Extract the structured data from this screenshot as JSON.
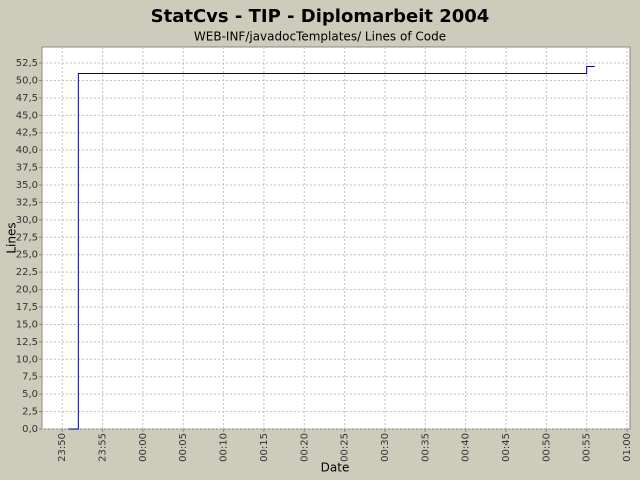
{
  "chart_data": {
    "type": "line",
    "step": "post",
    "title": "StatCvs - TIP - Diplomarbeit 2004",
    "subtitle": "WEB-INF/javadocTemplates/ Lines of Code",
    "x_label": "Date",
    "y_label": "Lines",
    "x": [
      "23:50:45",
      "23:52",
      "00:55",
      "00:56"
    ],
    "series": [
      {
        "name": "Lines of Code",
        "color": "#000080",
        "values": [
          0,
          51,
          52,
          52
        ]
      }
    ],
    "xlim": [
      "23:47:30",
      "01:00:22"
    ],
    "xticks": [
      "23:50",
      "23:55",
      "00:00",
      "00:05",
      "00:10",
      "00:15",
      "00:20",
      "00:25",
      "00:30",
      "00:35",
      "00:40",
      "00:45",
      "00:50",
      "00:55",
      "01:00"
    ],
    "ylim": [
      0,
      54.8
    ],
    "yticks": [
      {
        "value": 0,
        "label": "0,0"
      },
      {
        "value": 2.5,
        "label": "2,5"
      },
      {
        "value": 5,
        "label": "5,0"
      },
      {
        "value": 7.5,
        "label": "7,5"
      },
      {
        "value": 10,
        "label": "10,0"
      },
      {
        "value": 12.5,
        "label": "12,5"
      },
      {
        "value": 15,
        "label": "15,0"
      },
      {
        "value": 17.5,
        "label": "17,5"
      },
      {
        "value": 20,
        "label": "20,0"
      },
      {
        "value": 22.5,
        "label": "22,5"
      },
      {
        "value": 25,
        "label": "25,0"
      },
      {
        "value": 27.5,
        "label": "27,5"
      },
      {
        "value": 30,
        "label": "30,0"
      },
      {
        "value": 32.5,
        "label": "32,5"
      },
      {
        "value": 35,
        "label": "35,0"
      },
      {
        "value": 37.5,
        "label": "37,5"
      },
      {
        "value": 40,
        "label": "40,0"
      },
      {
        "value": 42.5,
        "label": "42,5"
      },
      {
        "value": 45,
        "label": "45,0"
      },
      {
        "value": 47.5,
        "label": "47,5"
      },
      {
        "value": 50,
        "label": "50,0"
      },
      {
        "value": 52.5,
        "label": "52,5"
      }
    ],
    "grid": true
  }
}
